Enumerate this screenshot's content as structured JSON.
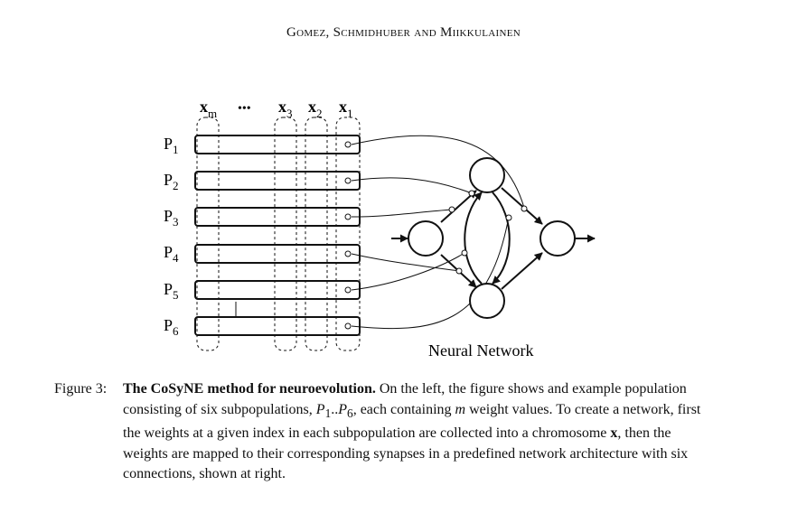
{
  "header": "Gomez, Schmidhuber and Miikkulainen",
  "figure": {
    "column_labels": [
      {
        "base": "x",
        "sub": "m"
      },
      {
        "base": "•••",
        "sub": ""
      },
      {
        "base": "x",
        "sub": "3"
      },
      {
        "base": "x",
        "sub": "2"
      },
      {
        "base": "x",
        "sub": "1"
      }
    ],
    "rows": [
      {
        "base": "P",
        "sub": "1"
      },
      {
        "base": "P",
        "sub": "2"
      },
      {
        "base": "P",
        "sub": "3"
      },
      {
        "base": "P",
        "sub": "4"
      },
      {
        "base": "P",
        "sub": "5"
      },
      {
        "base": "P",
        "sub": "6"
      }
    ],
    "network_label": "Neural Network"
  },
  "caption": {
    "label": "Figure 3:",
    "title": "The CoSyNE method for neuroevolution.",
    "seg1": " On the left, the figure shows and example population consisting of six subpopulations, ",
    "p_first": "P",
    "p_first_sub": "1",
    "range_sep": "..",
    "p_last": "P",
    "p_last_sub": "6",
    "seg2": ", each containing ",
    "m": "m",
    "seg3": " weight values. To create a network, first the weights at a given index in each subpopulation are collected into a chromosome ",
    "x": "x",
    "seg4": ", then the weights are mapped to their corresponding synapses in a predefined network architecture with six connections, shown at right."
  }
}
